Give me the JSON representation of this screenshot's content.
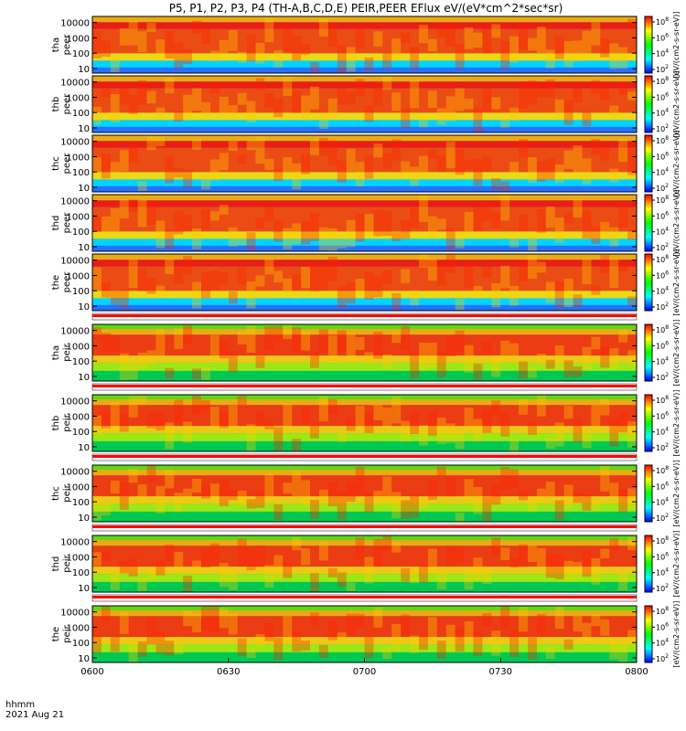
{
  "chart_data": {
    "type": "heatmap",
    "title": "P5, P1, P2, P3, P4 (TH-A,B,C,D,E) PEIR,PEER EFlux eV/(eV*cm^2*sec*sr)",
    "x_ticks": [
      "0600",
      "0630",
      "0700",
      "0730",
      "0800"
    ],
    "x_label_line1": "hhmm",
    "x_label_line2": "2021 Aug 21",
    "y_ticks": [
      "10000",
      "1000",
      "100",
      "10"
    ],
    "y_scale": "log",
    "ylim": [
      5,
      25000
    ],
    "colorbar_ticks": [
      "10^8",
      "10^6",
      "10^4",
      "10^2"
    ],
    "colorbar_label": "[eV/(cm2-s-sr-eV)]",
    "colormap": [
      "#0000ff",
      "#00ffff",
      "#00ff00",
      "#ffff00",
      "#ff0000"
    ],
    "panels": [
      {
        "label_probe": "tha",
        "label_inst": "peer"
      },
      {
        "label_probe": "thb",
        "label_inst": "peer"
      },
      {
        "label_probe": "thc",
        "label_inst": "peer"
      },
      {
        "label_probe": "thd",
        "label_inst": "peer"
      },
      {
        "label_probe": "the",
        "label_inst": "peer"
      },
      {
        "label_probe": "tha",
        "label_inst": "peir"
      },
      {
        "label_probe": "thb",
        "label_inst": "peir"
      },
      {
        "label_probe": "thc",
        "label_inst": "peir"
      },
      {
        "label_probe": "thd",
        "label_inst": "peir"
      },
      {
        "label_probe": "the",
        "label_inst": "peir"
      }
    ]
  }
}
